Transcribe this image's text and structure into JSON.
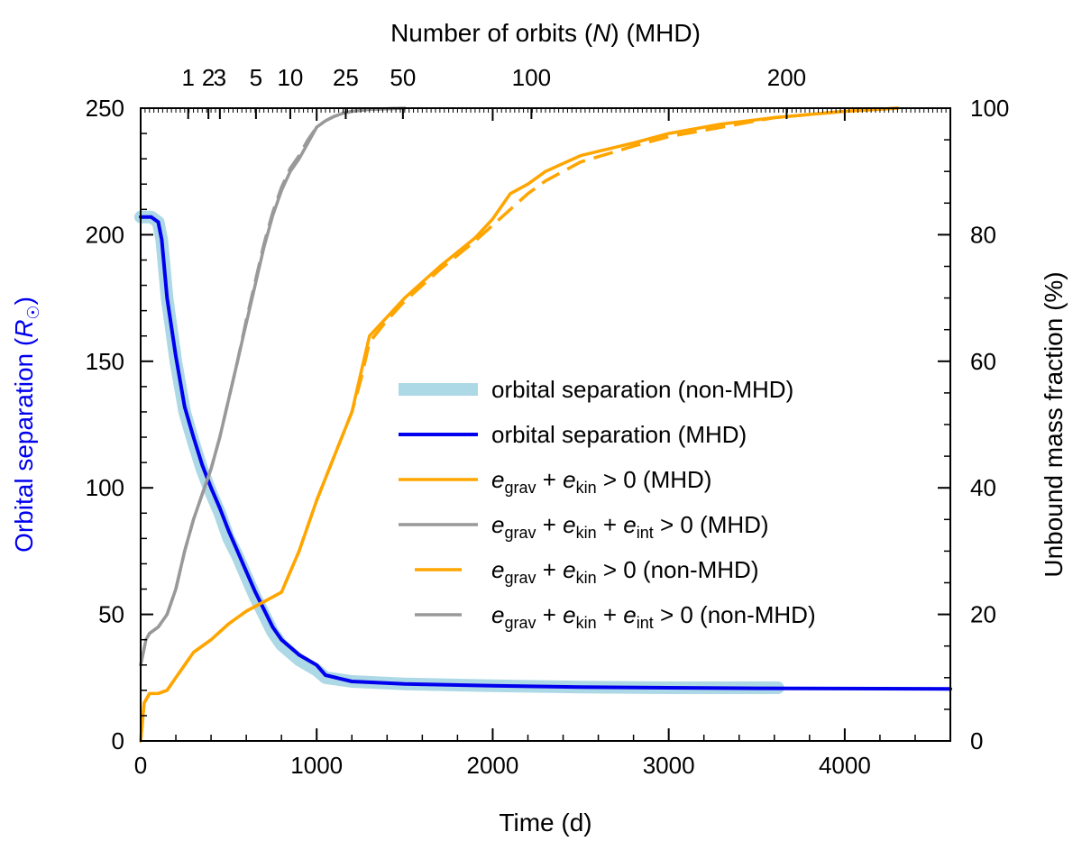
{
  "chart_data": {
    "type": "line",
    "xlabel": "Time (d)",
    "ylabel_left_prefix": "Orbital separation (",
    "ylabel_left_symbol": "R",
    "ylabel_left_suffix": ")",
    "ylabel_right": "Unbound mass fraction (%)",
    "top_axis_label_prefix": "Number of orbits (",
    "top_axis_label_symbol": "N",
    "top_axis_label_suffix": ") (MHD)",
    "xlim": [
      0,
      4600
    ],
    "ylim_left": [
      0,
      250
    ],
    "ylim_right": [
      0,
      100
    ],
    "x_ticks": [
      0,
      1000,
      2000,
      3000,
      4000
    ],
    "x_tick_labels": [
      "0",
      "1000",
      "2000",
      "3000",
      "4000"
    ],
    "y_left_ticks": [
      0,
      50,
      100,
      150,
      200,
      250
    ],
    "y_left_tick_labels": [
      "0",
      "50",
      "100",
      "150",
      "200",
      "250"
    ],
    "y_right_ticks": [
      0,
      20,
      40,
      60,
      80,
      100
    ],
    "y_right_tick_labels": [
      "0",
      "20",
      "40",
      "60",
      "80",
      "100"
    ],
    "top_ticks": [
      {
        "label": "1",
        "time": 270
      },
      {
        "label": "2",
        "time": 385
      },
      {
        "label": "3",
        "time": 450
      },
      {
        "label": "5",
        "time": 655
      },
      {
        "label": "10",
        "time": 850
      },
      {
        "label": "25",
        "time": 1165
      },
      {
        "label": "50",
        "time": 1490
      },
      {
        "label": "100",
        "time": 2220
      },
      {
        "label": "200",
        "time": 3670
      }
    ],
    "colors": {
      "sep_nonmhd": "#add8e6",
      "sep_mhd": "#0000ee",
      "orange": "#ffa500",
      "gray": "#999999",
      "left_label": "#0000ee"
    },
    "legend": {
      "position": "center-right",
      "entries": [
        {
          "id": "sep_nonmhd",
          "text": "orbital separation (non-MHD)"
        },
        {
          "id": "sep_mhd",
          "text": "orbital separation (MHD)"
        },
        {
          "id": "ub_kin_mhd",
          "e1": "grav",
          "e2": "kin",
          "e3": "",
          "cond": "> 0",
          "tag": "(MHD)"
        },
        {
          "id": "ub_int_mhd",
          "e1": "grav",
          "e2": "kin",
          "e3": "int",
          "cond": "> 0",
          "tag": "(MHD)"
        },
        {
          "id": "ub_kin_non",
          "e1": "grav",
          "e2": "kin",
          "e3": "",
          "cond": "> 0",
          "tag": "(non-MHD)"
        },
        {
          "id": "ub_int_non",
          "e1": "grav",
          "e2": "kin",
          "e3": "int",
          "cond": "> 0",
          "tag": "(non-MHD)"
        }
      ]
    },
    "series": [
      {
        "id": "sep_nonmhd",
        "name": "orbital separation (non-MHD)",
        "axis": "left",
        "style": "thick-light",
        "x": [
          0,
          60,
          100,
          120,
          150,
          200,
          250,
          300,
          350,
          400,
          450,
          500,
          550,
          600,
          650,
          700,
          750,
          800,
          900,
          1000,
          1050,
          1200,
          1500,
          2000,
          2500,
          3000,
          3620
        ],
        "y": [
          207,
          207,
          205,
          198,
          175,
          150,
          130,
          118,
          107,
          98,
          90,
          80,
          73,
          65,
          57,
          50,
          43,
          38,
          32,
          28,
          25,
          23.5,
          22.5,
          21.8,
          21.3,
          21,
          21
        ]
      },
      {
        "id": "sep_mhd",
        "name": "orbital separation (MHD)",
        "axis": "left",
        "style": "solid",
        "x": [
          0,
          60,
          100,
          120,
          150,
          200,
          250,
          300,
          350,
          400,
          450,
          500,
          550,
          600,
          650,
          700,
          750,
          800,
          900,
          1000,
          1050,
          1200,
          1500,
          2000,
          2500,
          3000,
          3500,
          4000,
          4600
        ],
        "y": [
          207,
          207,
          205,
          198,
          175,
          152,
          132,
          120,
          109,
          100,
          92,
          83,
          75,
          67,
          59,
          52,
          45,
          40,
          34,
          30,
          26,
          23.5,
          22.5,
          21.8,
          21.3,
          21,
          20.8,
          20.7,
          20.6
        ]
      },
      {
        "id": "ub_kin_mhd",
        "name": "e_grav + e_kin > 0 (MHD)",
        "axis": "right",
        "style": "solid",
        "x": [
          0,
          20,
          50,
          100,
          150,
          200,
          300,
          400,
          500,
          600,
          700,
          800,
          900,
          1000,
          1100,
          1200,
          1250,
          1300,
          1400,
          1500,
          1700,
          1900,
          2000,
          2100,
          2200,
          2300,
          2500,
          2800,
          3000,
          3300,
          3600,
          4000,
          4300
        ],
        "y": [
          0,
          6,
          7.5,
          7.5,
          8,
          10,
          14,
          16,
          18.5,
          20.5,
          22,
          23.5,
          30,
          38,
          45,
          52,
          58,
          64,
          67,
          70,
          75,
          79.5,
          82.5,
          86.5,
          88,
          90,
          92.5,
          94.5,
          96,
          97.5,
          98.5,
          99.5,
          100
        ]
      },
      {
        "id": "ub_int_mhd",
        "name": "e_grav + e_kin + e_int > 0 (MHD)",
        "axis": "right",
        "style": "solid",
        "x": [
          0,
          30,
          50,
          100,
          150,
          200,
          250,
          300,
          350,
          400,
          450,
          500,
          550,
          600,
          650,
          700,
          750,
          800,
          850,
          900,
          950,
          1000,
          1050,
          1100,
          1150,
          1200,
          1300,
          1500
        ],
        "y": [
          12,
          16,
          17,
          18,
          20,
          24,
          30,
          35,
          39,
          43,
          48,
          54,
          60,
          66,
          72,
          78,
          83,
          87,
          90,
          92,
          94.5,
          97,
          98,
          98.7,
          99.2,
          99.5,
          99.8,
          100
        ]
      },
      {
        "id": "ub_kin_non",
        "name": "e_grav + e_kin > 0 (non-MHD)",
        "axis": "right",
        "style": "dashed",
        "x": [
          0,
          20,
          50,
          100,
          150,
          200,
          300,
          400,
          500,
          600,
          700,
          800,
          900,
          1000,
          1100,
          1200,
          1250,
          1300,
          1400,
          1500,
          1700,
          1900,
          2000,
          2100,
          2200,
          2300,
          2500,
          2800,
          3000,
          3300,
          3600,
          4000,
          4300
        ],
        "y": [
          0,
          6,
          7.5,
          7.5,
          8,
          10,
          14,
          16,
          18.5,
          20.5,
          22,
          23.5,
          30,
          38,
          45,
          52,
          57,
          63,
          66.5,
          69.5,
          74.5,
          79,
          81.5,
          84,
          86.5,
          88.5,
          91.5,
          94,
          95.5,
          97,
          98.5,
          99.5,
          100
        ]
      },
      {
        "id": "ub_int_non",
        "name": "e_grav + e_kin + e_int > 0 (non-MHD)",
        "axis": "right",
        "style": "dashed",
        "x": [
          0,
          30,
          50,
          100,
          150,
          200,
          250,
          300,
          350,
          400,
          450,
          500,
          550,
          600,
          650,
          700,
          750,
          800,
          850,
          900,
          950,
          1000,
          1050,
          1100,
          1150,
          1200,
          1300,
          1500
        ],
        "y": [
          12,
          16,
          17,
          18,
          20,
          24,
          30,
          35,
          39,
          43,
          48,
          54,
          60,
          66.5,
          72.5,
          78.5,
          83.5,
          87.5,
          90.5,
          92.5,
          95,
          97,
          98,
          98.7,
          99.2,
          99.5,
          99.8,
          100
        ]
      }
    ]
  }
}
